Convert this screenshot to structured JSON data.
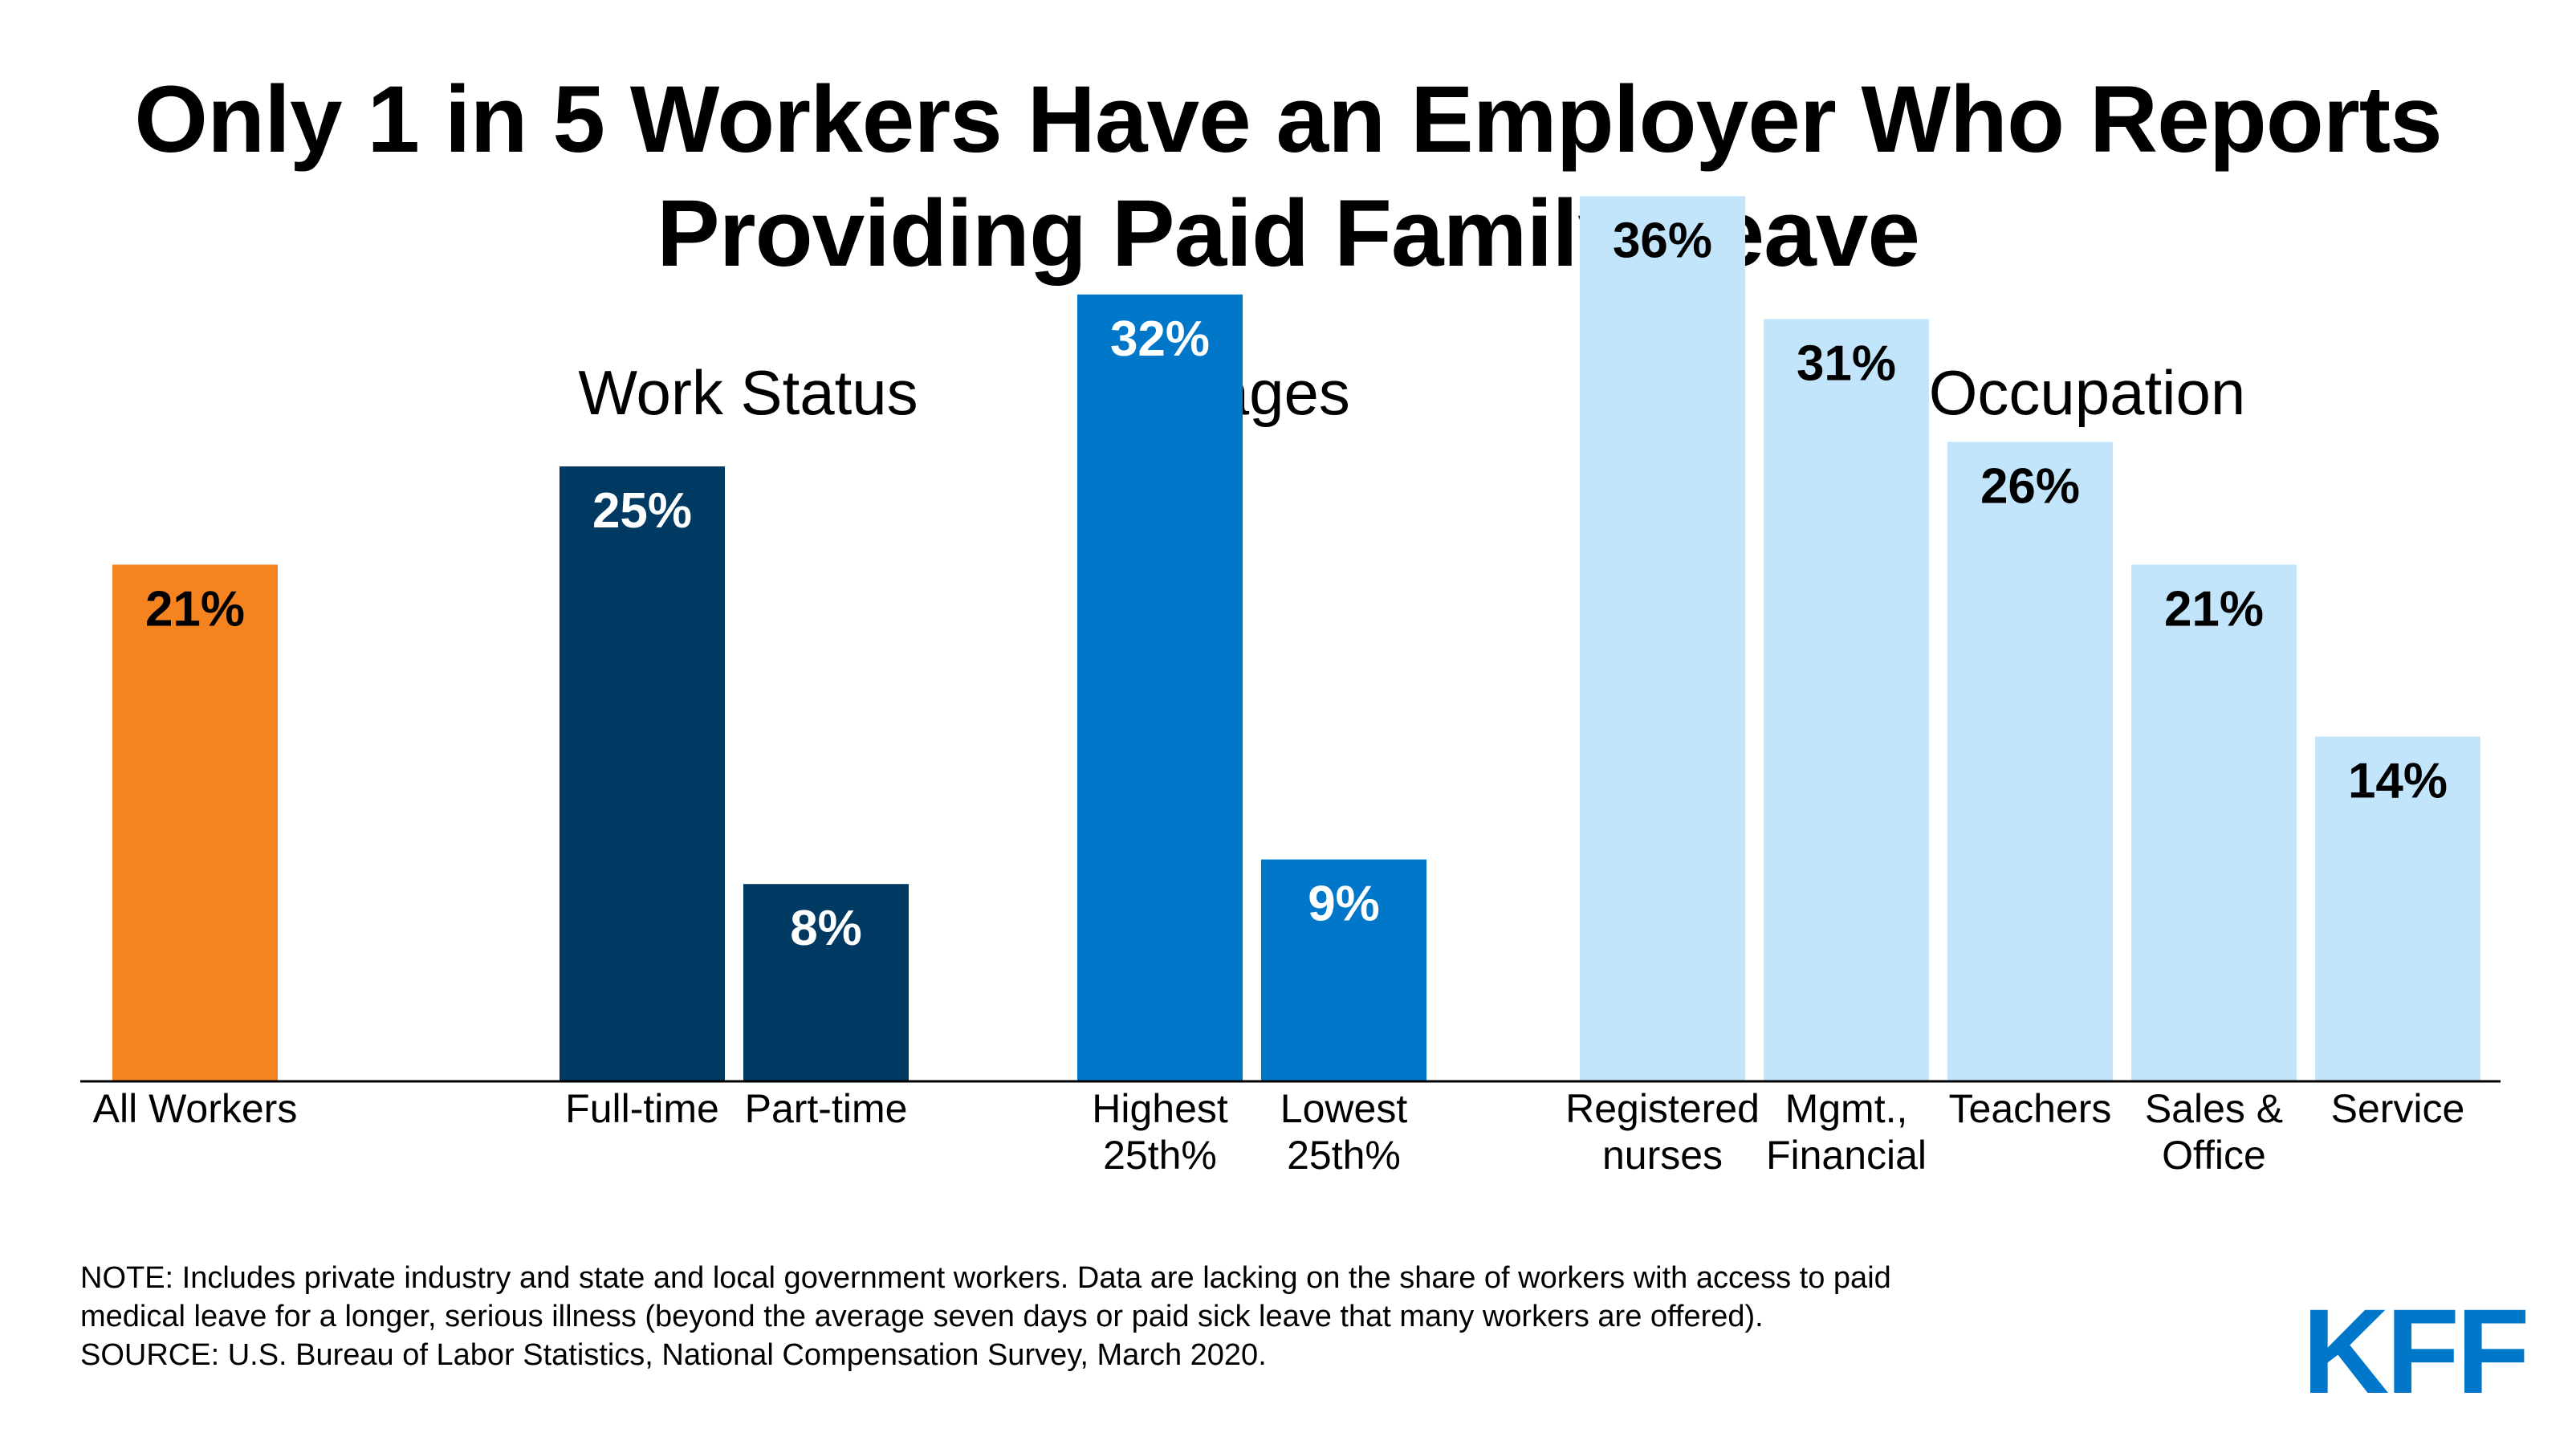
{
  "title_line1": "Only 1 in 5 Workers Have an Employer Who Reports",
  "title_line2": "Providing Paid Family Leave",
  "chart_data": {
    "type": "bar",
    "ylim": [
      0,
      40
    ],
    "groups": [
      {
        "name": "",
        "bars": [
          {
            "label": [
              "All Workers"
            ],
            "value": 21,
            "display": "21%",
            "color": "#f58420",
            "text_color": "#000000"
          }
        ]
      },
      {
        "name": "Work Status",
        "bars": [
          {
            "label": [
              "Full-time"
            ],
            "value": 25,
            "display": "25%",
            "color": "#003a63",
            "text_color": "#ffffff"
          },
          {
            "label": [
              "Part-time"
            ],
            "value": 8,
            "display": "8%",
            "color": "#003a63",
            "text_color": "#ffffff"
          }
        ]
      },
      {
        "name": "Wages",
        "bars": [
          {
            "label": [
              "Highest",
              "25th%"
            ],
            "value": 32,
            "display": "32%",
            "color": "#0077c8",
            "text_color": "#ffffff"
          },
          {
            "label": [
              "Lowest",
              "25th%"
            ],
            "value": 9,
            "display": "9%",
            "color": "#0077c8",
            "text_color": "#ffffff"
          }
        ]
      },
      {
        "name": "Occupation",
        "bars": [
          {
            "label": [
              "Registered",
              "nurses"
            ],
            "value": 36,
            "display": "36%",
            "color": "#c3e5fc",
            "text_color": "#000000"
          },
          {
            "label": [
              "Mgmt.,",
              "Financial"
            ],
            "value": 31,
            "display": "31%",
            "color": "#c3e5fc",
            "text_color": "#000000"
          },
          {
            "label": [
              "Teachers"
            ],
            "value": 26,
            "display": "26%",
            "color": "#c3e5fc",
            "text_color": "#000000"
          },
          {
            "label": [
              "Sales &",
              "Office"
            ],
            "value": 21,
            "display": "21%",
            "color": "#c3e5fc",
            "text_color": "#000000"
          },
          {
            "label": [
              "Service"
            ],
            "value": 14,
            "display": "14%",
            "color": "#c3e5fc",
            "text_color": "#000000"
          }
        ]
      }
    ]
  },
  "note_line1": "NOTE: Includes private industry and state and local government workers. Data are lacking on the share of workers with access to paid",
  "note_line2": "medical leave for a longer, serious illness (beyond the average seven days or paid sick leave that many workers are offered).",
  "source": "SOURCE: U.S. Bureau of Labor Statistics, National Compensation Survey, March 2020.",
  "logo_text": "KFF",
  "colors": {
    "accent": "#0077c8",
    "orange": "#f58420",
    "navy": "#003a63",
    "light_blue": "#c3e5fc"
  }
}
